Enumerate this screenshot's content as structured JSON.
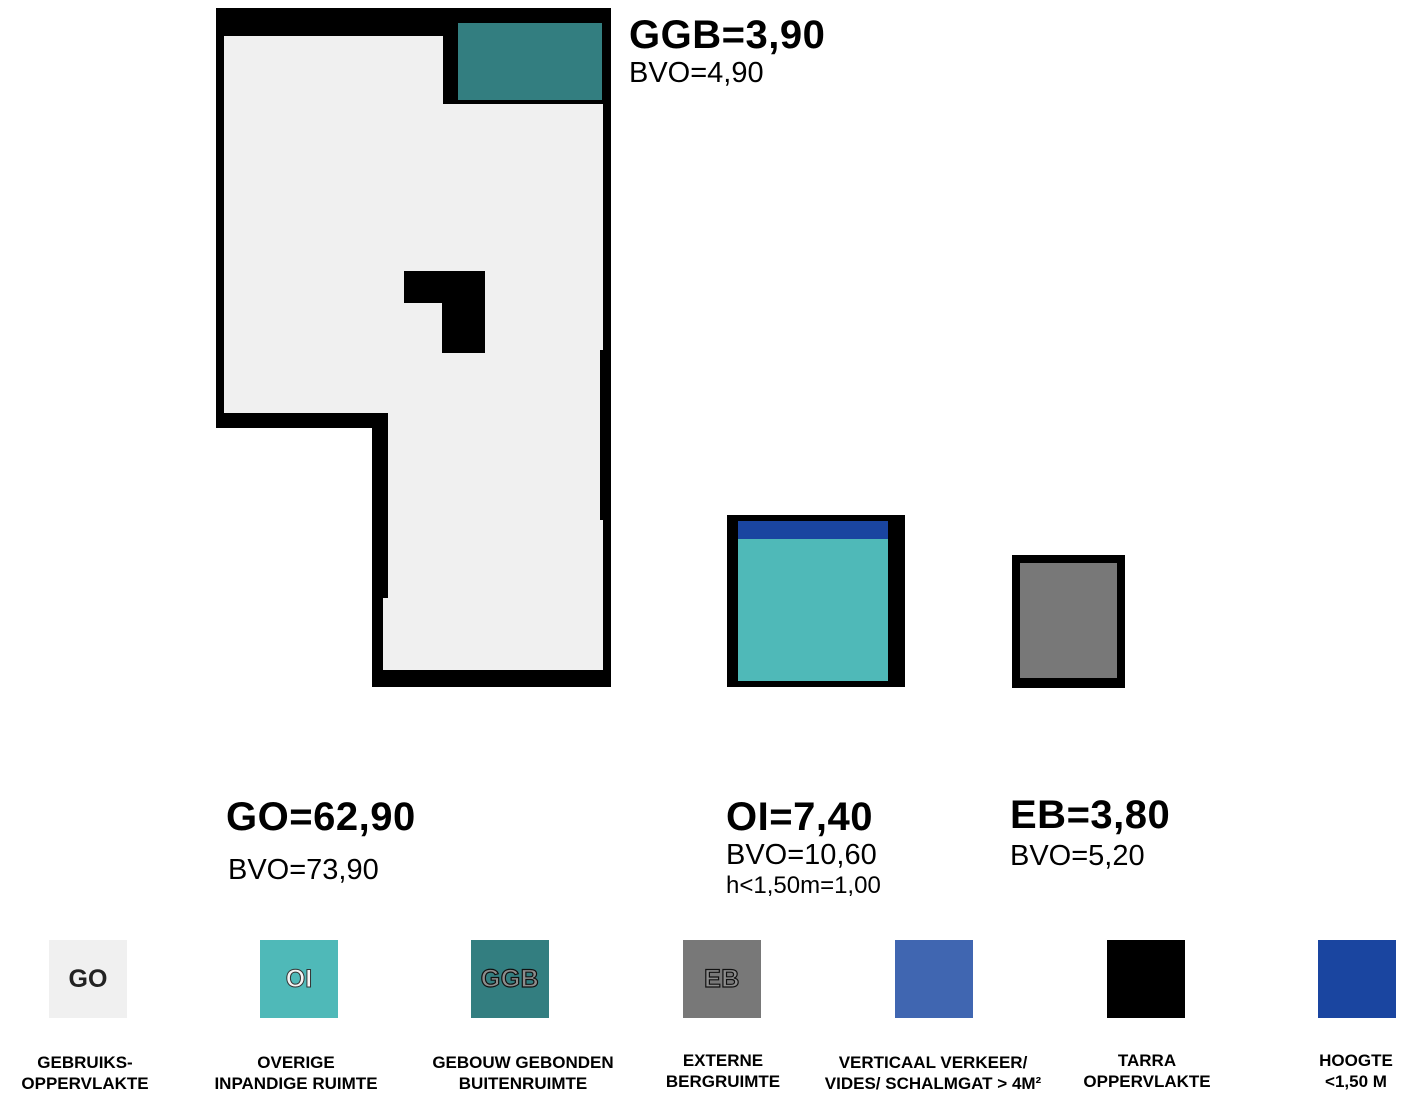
{
  "areas": {
    "ggb": {
      "title": "GGB=3,90",
      "bvo": "BVO=4,90"
    },
    "go": {
      "title": "GO=62,90",
      "bvo": "BVO=73,90"
    },
    "oi": {
      "title": "OI=7,40",
      "bvo": "BVO=10,60",
      "extra": "h<1,50m=1,00"
    },
    "eb": {
      "title": "EB=3,80",
      "bvo": "BVO=5,20"
    }
  },
  "colors": {
    "go": "#f0f0f0",
    "oi": "#4fb9b8",
    "ggb": "#337e80",
    "eb": "#787878",
    "vv": "#4066b1",
    "tarra": "#000000",
    "hoogte": "#1a45a0"
  },
  "legend": [
    {
      "code": "GO",
      "label": "GEBRUIKS-\nOPPERVLAKTE"
    },
    {
      "code": "OI",
      "label": "OVERIGE\nINPANDIGE RUIMTE"
    },
    {
      "code": "GGB",
      "label": "GEBOUW GEBONDEN\nBUITENRUIMTE"
    },
    {
      "code": "EB",
      "label": "EXTERNE\nBERGRUIMTE"
    },
    {
      "code": "",
      "label": "VERTICAAL VERKEER/\nVIDES/ SCHALMGAT > 4M²"
    },
    {
      "code": "",
      "label": "TARRA\nOPPERVLAKTE"
    },
    {
      "code": "",
      "label": "HOOGTE\n<1,50 M"
    }
  ]
}
